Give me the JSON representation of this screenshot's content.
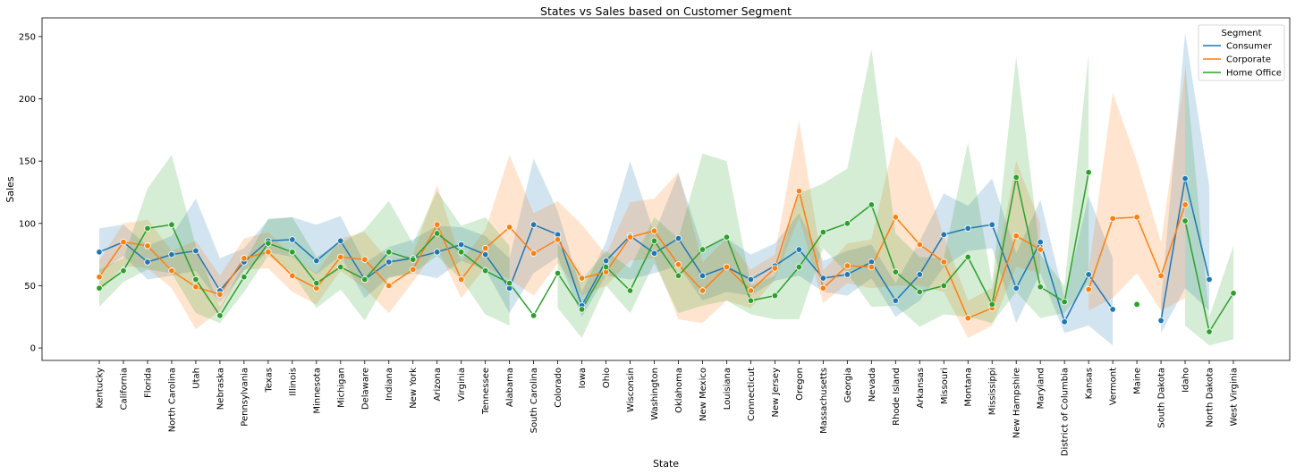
{
  "chart_data": {
    "type": "line",
    "title": "States vs Sales based on Customer Segment",
    "xlabel": "State",
    "ylabel": "Sales",
    "ylim": [
      -10,
      265
    ],
    "yticks": [
      0,
      50,
      100,
      150,
      200,
      250
    ],
    "grid": false,
    "legend": {
      "title": "Segment",
      "placement": "top-right"
    },
    "categories": [
      "Kentucky",
      "California",
      "Florida",
      "North Carolina",
      "Utah",
      "Nebraska",
      "Pennsylvania",
      "Texas",
      "Illinois",
      "Minnesota",
      "Michigan",
      "Delaware",
      "Indiana",
      "New York",
      "Arizona",
      "Virginia",
      "Tennessee",
      "Alabama",
      "South Carolina",
      "Colorado",
      "Iowa",
      "Ohio",
      "Wisconsin",
      "Washington",
      "Oklahoma",
      "New Mexico",
      "Louisiana",
      "Connecticut",
      "New Jersey",
      "Oregon",
      "Massachusetts",
      "Georgia",
      "Nevada",
      "Rhode Island",
      "Arkansas",
      "Missouri",
      "Montana",
      "Mississippi",
      "New Hampshire",
      "Maryland",
      "District of Columbia",
      "Kansas",
      "Vermont",
      "Maine",
      "South Dakota",
      "Idaho",
      "North Dakota",
      "West Virginia"
    ],
    "series": [
      {
        "name": "Consumer",
        "color": "#1f77b4",
        "values": [
          77,
          85,
          69,
          75,
          78,
          46,
          69,
          86,
          87,
          70,
          86,
          55,
          69,
          72,
          77,
          83,
          75,
          48,
          99,
          91,
          34,
          70,
          90,
          76,
          88,
          58,
          65,
          55,
          66,
          79,
          56,
          59,
          69,
          38,
          59,
          91,
          96,
          99,
          48,
          85,
          21,
          59,
          31,
          null,
          22,
          136,
          55,
          null
        ],
        "ci_low": [
          60,
          74,
          55,
          58,
          62,
          36,
          62,
          77,
          73,
          59,
          74,
          40,
          57,
          60,
          56,
          70,
          63,
          28,
          60,
          73,
          25,
          58,
          55,
          60,
          66,
          38,
          45,
          42,
          54,
          58,
          45,
          42,
          56,
          25,
          38,
          65,
          78,
          80,
          20,
          60,
          12,
          18,
          2,
          null,
          12,
          48,
          30,
          null
        ],
        "ci_high": [
          96,
          99,
          82,
          90,
          120,
          72,
          80,
          103,
          105,
          99,
          106,
          68,
          81,
          87,
          98,
          97,
          90,
          72,
          152,
          110,
          45,
          85,
          150,
          92,
          140,
          80,
          88,
          75,
          84,
          108,
          70,
          78,
          83,
          52,
          86,
          124,
          114,
          136,
          76,
          119,
          40,
          122,
          72,
          null,
          38,
          253,
          130,
          null
        ]
      },
      {
        "name": "Corporate",
        "color": "#ff7f0e",
        "values": [
          57,
          85,
          82,
          62,
          49,
          43,
          72,
          77,
          58,
          48,
          73,
          71,
          50,
          63,
          99,
          55,
          80,
          97,
          76,
          87,
          56,
          61,
          89,
          94,
          67,
          46,
          65,
          46,
          64,
          126,
          48,
          66,
          65,
          105,
          83,
          69,
          24,
          32,
          90,
          79,
          null,
          47,
          104,
          105,
          58,
          115,
          null,
          null
        ],
        "ci_low": [
          45,
          66,
          64,
          48,
          15,
          30,
          63,
          64,
          45,
          35,
          62,
          48,
          28,
          53,
          80,
          40,
          65,
          55,
          42,
          68,
          42,
          50,
          70,
          72,
          23,
          20,
          38,
          32,
          55,
          105,
          36,
          52,
          48,
          50,
          50,
          45,
          8,
          18,
          65,
          60,
          null,
          30,
          40,
          60,
          30,
          40,
          null,
          null
        ],
        "ci_high": [
          70,
          100,
          103,
          78,
          86,
          58,
          88,
          93,
          74,
          60,
          88,
          93,
          70,
          75,
          131,
          70,
          95,
          155,
          108,
          118,
          99,
          75,
          117,
          120,
          141,
          69,
          88,
          63,
          75,
          183,
          62,
          84,
          87,
          170,
          149,
          90,
          38,
          48,
          150,
          100,
          null,
          62,
          205,
          150,
          85,
          222,
          null,
          null
        ]
      },
      {
        "name": "Home Office",
        "color": "#2ca02c",
        "values": [
          48,
          62,
          96,
          99,
          55,
          26,
          57,
          84,
          77,
          52,
          65,
          55,
          77,
          71,
          92,
          77,
          62,
          52,
          26,
          60,
          31,
          65,
          46,
          86,
          58,
          79,
          89,
          38,
          42,
          65,
          93,
          100,
          115,
          61,
          45,
          50,
          73,
          35,
          137,
          49,
          37,
          141,
          null,
          35,
          null,
          102,
          13,
          44
        ],
        "ci_low": [
          33,
          53,
          63,
          60,
          28,
          20,
          45,
          74,
          60,
          32,
          47,
          22,
          56,
          60,
          74,
          55,
          27,
          18,
          null,
          32,
          8,
          50,
          28,
          68,
          28,
          34,
          38,
          27,
          23,
          23,
          80,
          60,
          33,
          34,
          17,
          27,
          25,
          20,
          45,
          24,
          28,
          52,
          null,
          10,
          null,
          18,
          2,
          7
        ],
        "ci_high": [
          63,
          72,
          128,
          155,
          82,
          33,
          68,
          104,
          105,
          73,
          84,
          95,
          118,
          84,
          126,
          98,
          105,
          82,
          null,
          84,
          55,
          78,
          64,
          105,
          88,
          156,
          150,
          50,
          58,
          124,
          132,
          144,
          240,
          92,
          73,
          72,
          165,
          52,
          234,
          75,
          50,
          236,
          null,
          60,
          null,
          228,
          25,
          82
        ]
      }
    ]
  }
}
